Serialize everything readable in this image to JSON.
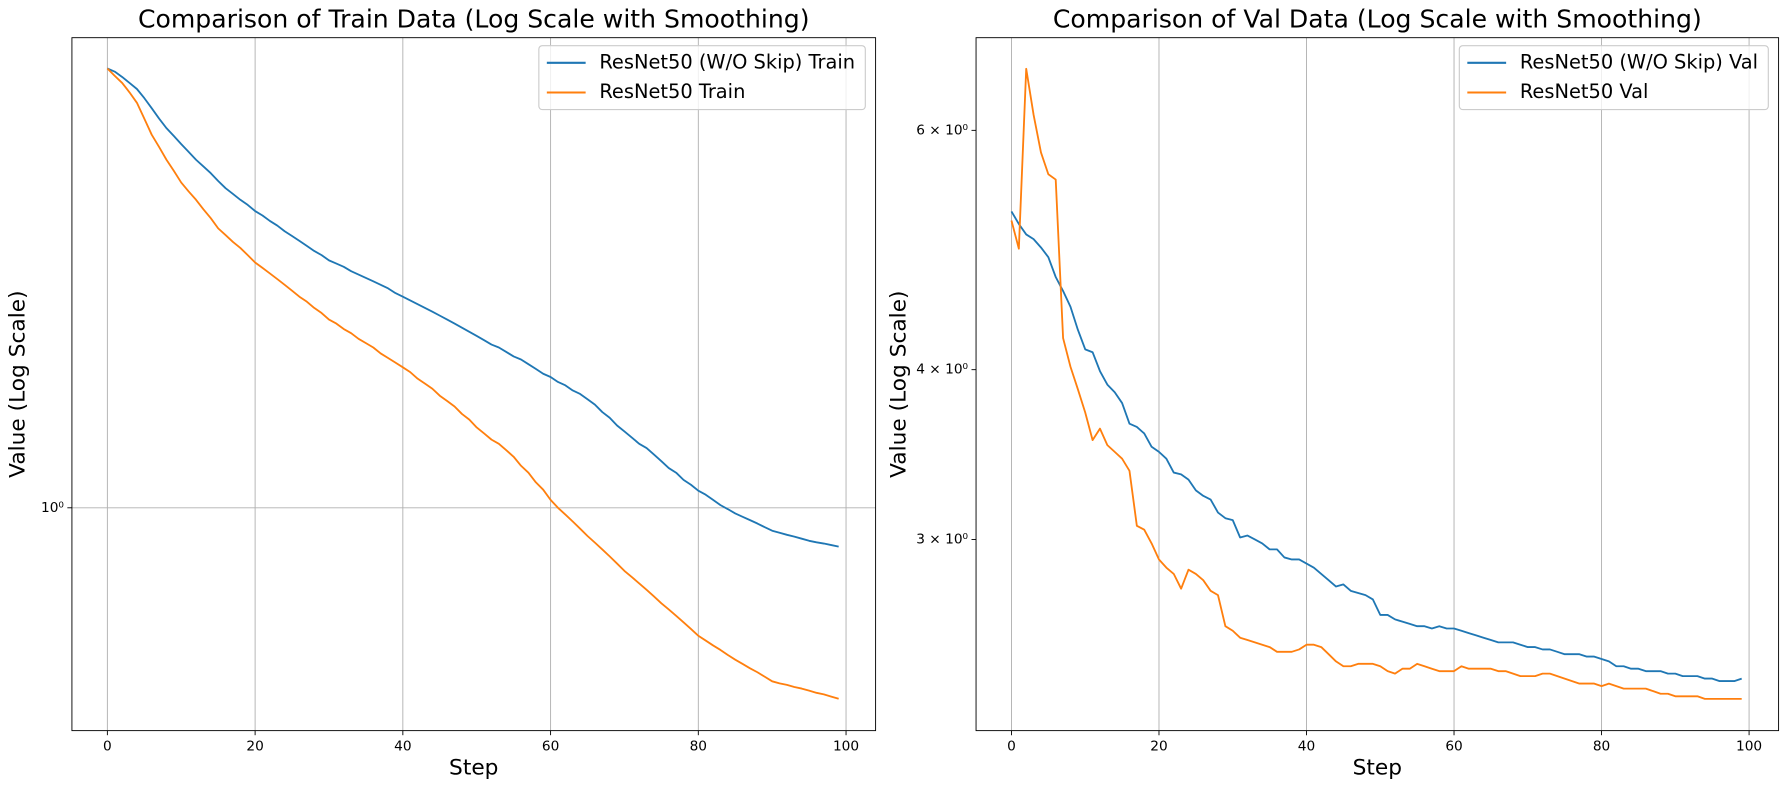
{
  "chart_data": [
    {
      "type": "line",
      "title": "Comparison of Train Data (Log Scale with Smoothing)",
      "xlabel": "Step",
      "ylabel": "Value (Log Scale)",
      "x": [
        0,
        1,
        2,
        3,
        4,
        5,
        6,
        7,
        8,
        9,
        10,
        11,
        12,
        13,
        14,
        15,
        16,
        17,
        18,
        19,
        20,
        21,
        22,
        23,
        24,
        25,
        26,
        27,
        28,
        29,
        30,
        31,
        32,
        33,
        34,
        35,
        36,
        37,
        38,
        39,
        40,
        41,
        42,
        43,
        44,
        45,
        46,
        47,
        48,
        49,
        50,
        51,
        52,
        53,
        54,
        55,
        56,
        57,
        58,
        59,
        60,
        61,
        62,
        63,
        64,
        65,
        66,
        67,
        68,
        69,
        70,
        71,
        72,
        73,
        74,
        75,
        76,
        77,
        78,
        79,
        80,
        81,
        82,
        83,
        84,
        85,
        86,
        87,
        88,
        89,
        90,
        91,
        92,
        93,
        94,
        95,
        96,
        97,
        98,
        99
      ],
      "series": [
        {
          "name": "ResNet50 (W/O Skip) Train",
          "color": "#1f77b4",
          "values": [
            5.16,
            5.1,
            5.0,
            4.89,
            4.78,
            4.62,
            4.45,
            4.28,
            4.13,
            4.01,
            3.89,
            3.78,
            3.67,
            3.58,
            3.49,
            3.39,
            3.3,
            3.23,
            3.16,
            3.1,
            3.03,
            2.98,
            2.92,
            2.87,
            2.81,
            2.76,
            2.71,
            2.66,
            2.61,
            2.57,
            2.52,
            2.49,
            2.46,
            2.42,
            2.39,
            2.36,
            2.33,
            2.3,
            2.27,
            2.23,
            2.2,
            2.17,
            2.14,
            2.11,
            2.08,
            2.05,
            2.02,
            1.99,
            1.96,
            1.93,
            1.9,
            1.87,
            1.84,
            1.82,
            1.79,
            1.76,
            1.74,
            1.71,
            1.68,
            1.65,
            1.63,
            1.6,
            1.58,
            1.55,
            1.53,
            1.5,
            1.47,
            1.43,
            1.4,
            1.36,
            1.33,
            1.3,
            1.27,
            1.25,
            1.22,
            1.19,
            1.16,
            1.14,
            1.11,
            1.09,
            1.066,
            1.05,
            1.03,
            1.01,
            0.995,
            0.979,
            0.967,
            0.955,
            0.943,
            0.93,
            0.918,
            0.911,
            0.904,
            0.898,
            0.891,
            0.884,
            0.879,
            0.875,
            0.87,
            0.865
          ]
        },
        {
          "name": "ResNet50 Train",
          "color": "#ff7f0e",
          "values": [
            5.16,
            5.02,
            4.89,
            4.72,
            4.54,
            4.28,
            4.03,
            3.85,
            3.67,
            3.52,
            3.37,
            3.26,
            3.16,
            3.05,
            2.95,
            2.84,
            2.77,
            2.7,
            2.64,
            2.57,
            2.5,
            2.45,
            2.4,
            2.35,
            2.3,
            2.25,
            2.2,
            2.16,
            2.11,
            2.07,
            2.02,
            1.99,
            1.95,
            1.92,
            1.88,
            1.85,
            1.82,
            1.78,
            1.75,
            1.72,
            1.69,
            1.66,
            1.62,
            1.59,
            1.56,
            1.52,
            1.49,
            1.46,
            1.42,
            1.39,
            1.35,
            1.32,
            1.29,
            1.27,
            1.24,
            1.21,
            1.17,
            1.14,
            1.1,
            1.07,
            1.03,
            1.0,
            0.975,
            0.95,
            0.925,
            0.9,
            0.878,
            0.856,
            0.834,
            0.812,
            0.79,
            0.772,
            0.754,
            0.736,
            0.718,
            0.7,
            0.684,
            0.668,
            0.652,
            0.636,
            0.62,
            0.609,
            0.598,
            0.588,
            0.577,
            0.567,
            0.558,
            0.549,
            0.541,
            0.532,
            0.523,
            0.519,
            0.516,
            0.512,
            0.509,
            0.505,
            0.501,
            0.498,
            0.494,
            0.49
          ]
        }
      ],
      "xlim": [
        -4.8,
        104
      ],
      "ylim": [
        0.435,
        5.79
      ],
      "yscale": "log",
      "xticks": [
        0,
        20,
        40,
        60,
        80,
        100
      ],
      "yticks": [
        {
          "value": 1,
          "label": "10⁰"
        }
      ],
      "xgrid": true,
      "ygrid": true,
      "legend": "upper right"
    },
    {
      "type": "line",
      "title": "Comparison of Val Data (Log Scale with Smoothing)",
      "xlabel": "Step",
      "ylabel": "Value (Log Scale)",
      "x": [
        0,
        1,
        2,
        3,
        4,
        5,
        6,
        7,
        8,
        9,
        10,
        11,
        12,
        13,
        14,
        15,
        16,
        17,
        18,
        19,
        20,
        21,
        22,
        23,
        24,
        25,
        26,
        27,
        28,
        29,
        30,
        31,
        32,
        33,
        34,
        35,
        36,
        37,
        38,
        39,
        40,
        41,
        42,
        43,
        44,
        45,
        46,
        47,
        48,
        49,
        50,
        51,
        52,
        53,
        54,
        55,
        56,
        57,
        58,
        59,
        60,
        61,
        62,
        63,
        64,
        65,
        66,
        67,
        68,
        69,
        70,
        71,
        72,
        73,
        74,
        75,
        76,
        77,
        78,
        79,
        80,
        81,
        82,
        83,
        84,
        85,
        86,
        87,
        88,
        89,
        90,
        91,
        92,
        93,
        94,
        95,
        96,
        97,
        98,
        99
      ],
      "series": [
        {
          "name": "ResNet50 (W/O Skip) Val",
          "color": "#1f77b4",
          "values": [
            5.23,
            5.12,
            5.03,
            4.99,
            4.92,
            4.84,
            4.68,
            4.57,
            4.45,
            4.28,
            4.14,
            4.12,
            3.99,
            3.9,
            3.85,
            3.78,
            3.65,
            3.63,
            3.59,
            3.51,
            3.48,
            3.44,
            3.36,
            3.35,
            3.32,
            3.26,
            3.23,
            3.21,
            3.14,
            3.11,
            3.1,
            3.01,
            3.02,
            3.0,
            2.98,
            2.95,
            2.95,
            2.91,
            2.9,
            2.9,
            2.88,
            2.86,
            2.83,
            2.8,
            2.77,
            2.78,
            2.75,
            2.74,
            2.73,
            2.71,
            2.64,
            2.64,
            2.62,
            2.61,
            2.6,
            2.59,
            2.59,
            2.58,
            2.59,
            2.58,
            2.58,
            2.57,
            2.56,
            2.55,
            2.54,
            2.53,
            2.52,
            2.52,
            2.52,
            2.51,
            2.5,
            2.5,
            2.49,
            2.49,
            2.48,
            2.47,
            2.47,
            2.47,
            2.46,
            2.46,
            2.45,
            2.44,
            2.42,
            2.42,
            2.41,
            2.41,
            2.4,
            2.4,
            2.4,
            2.39,
            2.39,
            2.38,
            2.38,
            2.38,
            2.37,
            2.37,
            2.36,
            2.36,
            2.36,
            2.37
          ]
        },
        {
          "name": "ResNet50 Val",
          "color": "#ff7f0e",
          "values": [
            5.15,
            4.91,
            6.66,
            6.16,
            5.78,
            5.57,
            5.52,
            4.22,
            4.02,
            3.87,
            3.72,
            3.55,
            3.62,
            3.52,
            3.48,
            3.44,
            3.37,
            3.07,
            3.05,
            2.98,
            2.9,
            2.86,
            2.83,
            2.76,
            2.85,
            2.83,
            2.8,
            2.75,
            2.73,
            2.59,
            2.57,
            2.54,
            2.53,
            2.52,
            2.51,
            2.5,
            2.48,
            2.48,
            2.48,
            2.49,
            2.51,
            2.51,
            2.5,
            2.47,
            2.44,
            2.42,
            2.42,
            2.43,
            2.43,
            2.43,
            2.42,
            2.4,
            2.39,
            2.41,
            2.41,
            2.43,
            2.42,
            2.41,
            2.4,
            2.4,
            2.4,
            2.42,
            2.41,
            2.41,
            2.41,
            2.41,
            2.4,
            2.4,
            2.39,
            2.38,
            2.38,
            2.38,
            2.39,
            2.39,
            2.38,
            2.37,
            2.36,
            2.35,
            2.35,
            2.35,
            2.34,
            2.35,
            2.34,
            2.33,
            2.33,
            2.33,
            2.33,
            2.32,
            2.31,
            2.31,
            2.3,
            2.3,
            2.3,
            2.3,
            2.29,
            2.29,
            2.29,
            2.29,
            2.29,
            2.29
          ]
        }
      ],
      "xlim": [
        -4.8,
        104
      ],
      "ylim": [
        2.17,
        7.02
      ],
      "yscale": "log",
      "xticks": [
        0,
        20,
        40,
        60,
        80,
        100
      ],
      "yticks": [
        {
          "value": 3,
          "label": "3 × 10⁰"
        },
        {
          "value": 4,
          "label": "4 × 10⁰"
        },
        {
          "value": 6,
          "label": "6 × 10⁰"
        }
      ],
      "xgrid": true,
      "ygrid": false,
      "legend": "upper right"
    }
  ]
}
